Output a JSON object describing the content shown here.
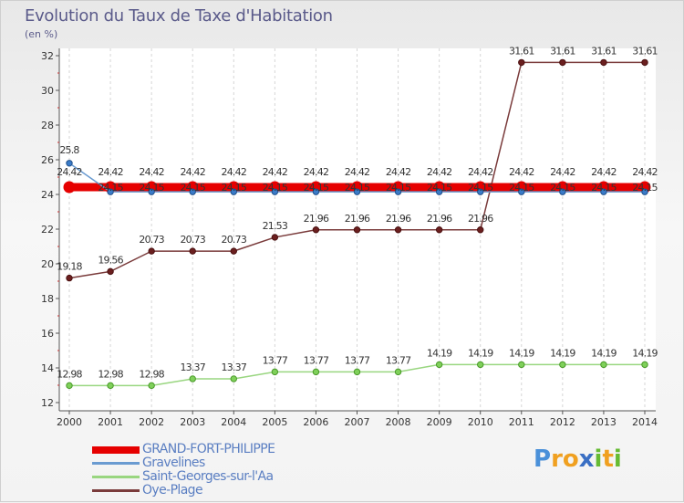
{
  "chart_data": {
    "type": "line",
    "title": "Evolution du Taux de Taxe d'Habitation",
    "ylabel": "(en %)",
    "xlabel": "",
    "ylim": [
      12,
      32
    ],
    "yticks": [
      "12",
      "14",
      "16",
      "18",
      "20",
      "22",
      "24",
      "26",
      "28",
      "30",
      "32"
    ],
    "categories": [
      "2000",
      "2001",
      "2002",
      "2003",
      "2004",
      "2005",
      "2006",
      "2007",
      "2008",
      "2009",
      "2010",
      "2011",
      "2012",
      "2013",
      "2014"
    ],
    "series": [
      {
        "name": "GRAND-FORT-PHILIPPE",
        "color": "#e60000",
        "values": [
          24.42,
          24.42,
          24.42,
          24.42,
          24.42,
          24.42,
          24.42,
          24.42,
          24.42,
          24.42,
          24.42,
          24.42,
          24.42,
          24.42,
          24.42
        ],
        "labels": [
          "24.42",
          "24.42",
          "24.42",
          "24.42",
          "24.42",
          "24.42",
          "24.42",
          "24.42",
          "24.42",
          "24.42",
          "24.42",
          "24.42",
          "24.42",
          "24.42",
          "24.42"
        ]
      },
      {
        "name": "Gravelines",
        "color": "#6a9bd1",
        "values": [
          25.8,
          24.15,
          24.15,
          24.15,
          24.15,
          24.15,
          24.15,
          24.15,
          24.15,
          24.15,
          24.15,
          24.15,
          24.15,
          24.15,
          24.15
        ],
        "labels": [
          "25.8",
          "24.15",
          "24.15",
          "24.15",
          "24.15",
          "24.15",
          "24.15",
          "24.15",
          "24.15",
          "24.15",
          "24.15",
          "24.15",
          "24.15",
          "24.15",
          "24.15"
        ]
      },
      {
        "name": "Saint-Georges-sur-l'Aa",
        "color": "#99d680",
        "values": [
          12.98,
          12.98,
          12.98,
          13.37,
          13.37,
          13.77,
          13.77,
          13.77,
          13.77,
          14.19,
          14.19,
          14.19,
          14.19,
          14.19,
          14.19
        ],
        "labels": [
          "12.98",
          "12.98",
          "12.98",
          "13.37",
          "13.37",
          "13.77",
          "13.77",
          "13.77",
          "13.77",
          "14.19",
          "14.19",
          "14.19",
          "14.19",
          "14.19",
          "14.19"
        ]
      },
      {
        "name": "Oye-Plage",
        "color": "#7a3b3b",
        "values": [
          19.18,
          19.56,
          20.73,
          20.73,
          20.73,
          21.53,
          21.96,
          21.96,
          21.96,
          21.96,
          21.96,
          31.61,
          31.61,
          31.61,
          31.61
        ],
        "labels": [
          "19.18",
          "19.56",
          "20.73",
          "20.73",
          "20.73",
          "21.53",
          "21.96",
          "21.96",
          "21.96",
          "21.96",
          "21.96",
          "31.61",
          "31.61",
          "31.61",
          "31.61"
        ]
      }
    ],
    "legend_position": "bottom-left"
  },
  "logo": {
    "letters": [
      "P",
      "r",
      "o",
      "x",
      "i",
      "t",
      "i"
    ],
    "colors": [
      "#4a90d9",
      "#f0a020",
      "#f0a020",
      "#3a6fc4",
      "#66bb33",
      "#f0a020",
      "#66bb33"
    ]
  }
}
